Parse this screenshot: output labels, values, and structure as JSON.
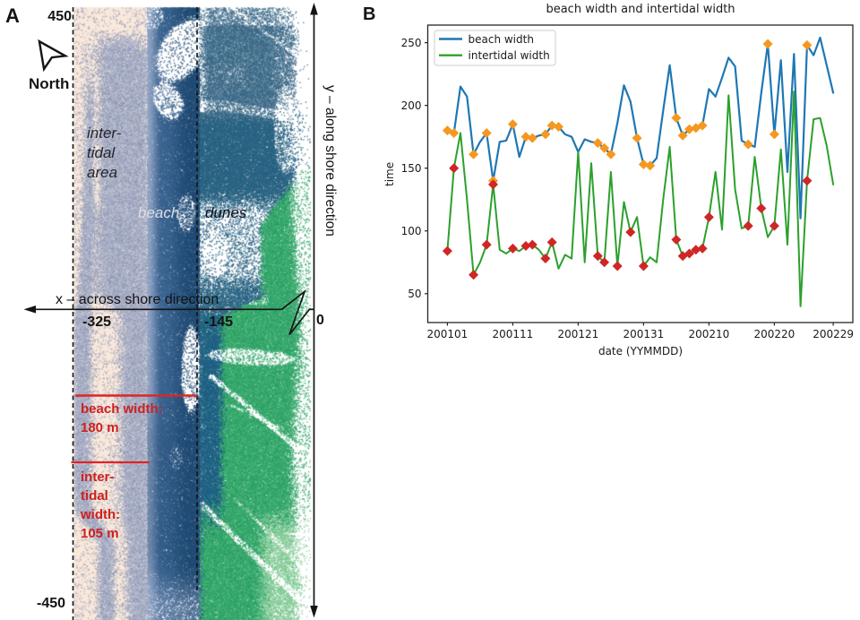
{
  "panelA": {
    "label": "A",
    "north_label": "North",
    "y_top_value": "450",
    "y_bottom_value": "-450",
    "x_axis_label": "x – across shore direction",
    "y_axis_label": "y – along shore direction",
    "x_left_value": "-325",
    "x_right_value": "-145",
    "x_zero_value": "0",
    "zone_labels": {
      "intertidal_lines": [
        "inter-",
        "tidal",
        "area"
      ],
      "beach": "beach",
      "dunes": "dunes"
    },
    "annotations": {
      "beach_width_lines": [
        "beach width:",
        "180 m"
      ],
      "intertidal_width_lines": [
        "inter-",
        "tidal",
        "width:",
        "105 m"
      ]
    },
    "colors": {
      "intertidal_highlight": "#fae8da",
      "intertidal_points": "#a9b0c7",
      "intertidal_points_dark": "#8d96b2",
      "intertidal_points_light": "#c9cedd",
      "beach_points_light": "#8ea1c2",
      "beach_points_mid": "#3a6390",
      "beach_points_dark": "#1f4a73",
      "dunes_slate": "#4a7592",
      "dunes_slate_dark": "#33607f",
      "dunes_navy": "#2f5c80",
      "dunes_teal": "#1f6d86",
      "dunes_green": "#2ba166",
      "dunes_green_light": "#58bd7d",
      "dunes_pale": "#93cf9e",
      "annotation_red": "#e02424",
      "axis_black": "#141414"
    }
  },
  "panelB": {
    "label": "B",
    "chart_data": {
      "type": "line",
      "title": "beach width and intertidal width",
      "xlabel": "date (YYMMDD)",
      "ylabel": "time",
      "grid": false,
      "legend_position": "upper left",
      "xlim": [
        -3,
        62
      ],
      "ylim": [
        27,
        264
      ],
      "xtick_days": [
        0,
        10,
        20,
        30,
        40,
        50,
        59
      ],
      "xtick_labels": [
        "200101",
        "200111",
        "200121",
        "200131",
        "200210",
        "200220",
        "200229"
      ],
      "yticks": [
        50,
        100,
        150,
        200,
        250
      ],
      "x_dates_yymmdd": [
        "200101",
        "200102",
        "200103",
        "200104",
        "200105",
        "200106",
        "200107",
        "200108",
        "200109",
        "200110",
        "200111",
        "200112",
        "200113",
        "200114",
        "200115",
        "200116",
        "200117",
        "200118",
        "200119",
        "200120",
        "200121",
        "200122",
        "200123",
        "200124",
        "200125",
        "200126",
        "200127",
        "200128",
        "200129",
        "200130",
        "200131",
        "200201",
        "200202",
        "200203",
        "200204",
        "200205",
        "200206",
        "200207",
        "200208",
        "200209",
        "200210",
        "200211",
        "200212",
        "200213",
        "200214",
        "200215",
        "200216",
        "200217",
        "200218",
        "200219",
        "200220",
        "200221",
        "200222",
        "200223",
        "200224",
        "200225",
        "200226",
        "200227",
        "200228",
        "200229"
      ],
      "series": [
        {
          "name": "beach width",
          "color": "#1f77b4",
          "line_width": 2.2,
          "marker": "D",
          "marker_color": "#f59820",
          "marker_days": [
            0,
            1,
            4,
            6,
            7,
            10,
            12,
            13,
            15,
            16,
            17,
            23,
            24,
            25,
            29,
            30,
            31,
            35,
            36,
            37,
            38,
            39,
            46,
            49,
            50,
            55
          ],
          "values": [
            180,
            178,
            215,
            207,
            161,
            171,
            178,
            140,
            171,
            172,
            185,
            159,
            175,
            174,
            176,
            177,
            184,
            183,
            177,
            175,
            163,
            173,
            171,
            170,
            166,
            161,
            186,
            216,
            203,
            174,
            153,
            152,
            158,
            196,
            232,
            190,
            176,
            181,
            182,
            184,
            213,
            207,
            222,
            238,
            231,
            172,
            169,
            167,
            210,
            249,
            177,
            236,
            147,
            241,
            110,
            248,
            240,
            254,
            232,
            210
          ]
        },
        {
          "name": "intertidal width",
          "color": "#2ca02c",
          "line_width": 2.0,
          "marker": "D",
          "marker_color": "#cf2626",
          "marker_days": [
            0,
            1,
            4,
            6,
            7,
            10,
            12,
            13,
            15,
            16,
            23,
            24,
            26,
            28,
            30,
            35,
            36,
            37,
            38,
            39,
            40,
            46,
            48,
            50,
            55
          ],
          "values": [
            84,
            150,
            178,
            125,
            65,
            75,
            89,
            137,
            85,
            82,
            86,
            84,
            88,
            89,
            85,
            78,
            91,
            70,
            81,
            78,
            163,
            75,
            154,
            80,
            75,
            147,
            72,
            123,
            99,
            111,
            72,
            79,
            75,
            125,
            167,
            93,
            80,
            82,
            85,
            86,
            111,
            147,
            101,
            208,
            133,
            102,
            104,
            159,
            118,
            95,
            104,
            165,
            89,
            211,
            40,
            140,
            189,
            190,
            168,
            137
          ]
        }
      ]
    }
  }
}
